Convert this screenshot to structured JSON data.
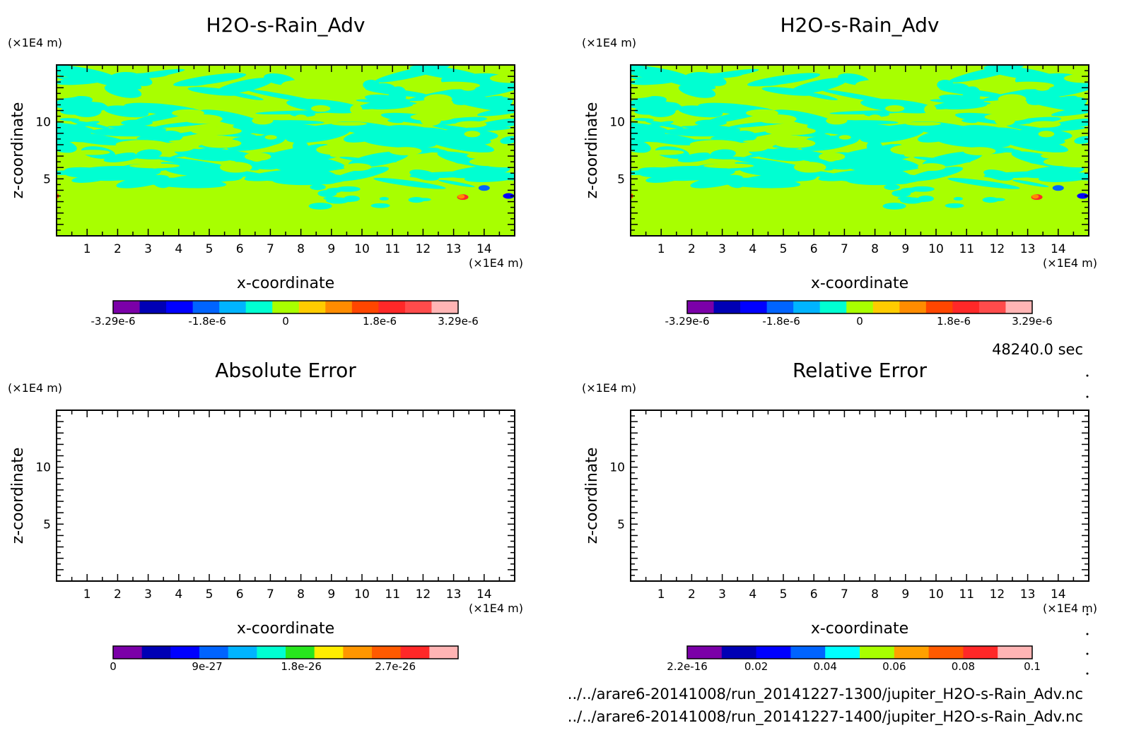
{
  "time_label": "48240.0 sec",
  "files": [
    "../../arare6-20141008/run_20141227-1300/jupiter_H2O-s-Rain_Adv.nc",
    "../../arare6-20141008/run_20141227-1400/jupiter_H2O-s-Rain_Adv.nc"
  ],
  "chart_data": [
    {
      "type": "heatmap",
      "title": "H2O-s-Rain_Adv",
      "xlabel": "x-coordinate",
      "ylabel": "z-coordinate",
      "x_unit": "(×1E4 m)",
      "y_unit": "(×1E4 m)",
      "xlim": [
        0,
        15
      ],
      "ylim": [
        0,
        15
      ],
      "xticks": [
        "1",
        "2",
        "3",
        "4",
        "5",
        "6",
        "7",
        "8",
        "9",
        "10",
        "11",
        "12",
        "13",
        "14"
      ],
      "yticks": [
        "5",
        "10"
      ],
      "colorbar": {
        "colors": [
          "#7b00a8",
          "#0000b4",
          "#0000ff",
          "#0064ff",
          "#00b4ff",
          "#00ffd2",
          "#a8ff00",
          "#ffcc00",
          "#ff8c00",
          "#ff4600",
          "#ff2828",
          "#ff4b4b",
          "#ffb4b4"
        ],
        "ticks": [
          "-3.29e-6",
          "-1.8e-6",
          "0",
          "1.8e-6",
          "3.29e-6"
        ],
        "tick_positions": [
          0.0,
          0.2727,
          0.5,
          0.7727,
          1.0
        ]
      },
      "field": {
        "background": "#a8ff00",
        "band_color": "#00ffd2",
        "z_range_bands": [
          4.5,
          14.5
        ],
        "hotspots": [
          {
            "x": 13.3,
            "z": 3.4,
            "color": "#ff2828"
          },
          {
            "x": 14.0,
            "z": 4.2,
            "color": "#0064ff"
          },
          {
            "x": 14.8,
            "z": 3.5,
            "color": "#0000ff"
          }
        ]
      }
    },
    {
      "type": "heatmap",
      "title": "H2O-s-Rain_Adv",
      "xlabel": "x-coordinate",
      "ylabel": "z-coordinate",
      "x_unit": "(×1E4 m)",
      "y_unit": "(×1E4 m)",
      "xlim": [
        0,
        15
      ],
      "ylim": [
        0,
        15
      ],
      "xticks": [
        "1",
        "2",
        "3",
        "4",
        "5",
        "6",
        "7",
        "8",
        "9",
        "10",
        "11",
        "12",
        "13",
        "14"
      ],
      "yticks": [
        "5",
        "10"
      ],
      "colorbar": {
        "colors": [
          "#7b00a8",
          "#0000b4",
          "#0000ff",
          "#0064ff",
          "#00b4ff",
          "#00ffd2",
          "#a8ff00",
          "#ffcc00",
          "#ff8c00",
          "#ff4600",
          "#ff2828",
          "#ff4b4b",
          "#ffb4b4"
        ],
        "ticks": [
          "-3.29e-6",
          "-1.8e-6",
          "0",
          "1.8e-6",
          "3.29e-6"
        ],
        "tick_positions": [
          0.0,
          0.2727,
          0.5,
          0.7727,
          1.0
        ]
      },
      "field": {
        "background": "#a8ff00",
        "band_color": "#00ffd2",
        "z_range_bands": [
          4.5,
          14.5
        ],
        "hotspots": [
          {
            "x": 13.3,
            "z": 3.4,
            "color": "#ff2828"
          },
          {
            "x": 14.0,
            "z": 4.2,
            "color": "#0064ff"
          },
          {
            "x": 14.8,
            "z": 3.5,
            "color": "#0000ff"
          }
        ]
      }
    },
    {
      "type": "heatmap",
      "title": "Absolute Error",
      "xlabel": "x-coordinate",
      "ylabel": "z-coordinate",
      "x_unit": "(×1E4 m)",
      "y_unit": "(×1E4 m)",
      "xlim": [
        0,
        15
      ],
      "ylim": [
        0,
        15
      ],
      "xticks": [
        "1",
        "2",
        "3",
        "4",
        "5",
        "6",
        "7",
        "8",
        "9",
        "10",
        "11",
        "12",
        "13",
        "14"
      ],
      "yticks": [
        "5",
        "10"
      ],
      "colorbar": {
        "colors": [
          "#7b00a8",
          "#0000b4",
          "#0000ff",
          "#0064ff",
          "#00b4ff",
          "#00ffd2",
          "#28e61e",
          "#ffee00",
          "#ff9600",
          "#ff5a00",
          "#ff2828",
          "#ffb4b4"
        ],
        "ticks": [
          "0",
          "9e-27",
          "1.8e-26",
          "2.7e-26"
        ],
        "tick_positions": [
          0.0,
          0.2727,
          0.5454,
          0.8181
        ]
      },
      "field": null
    },
    {
      "type": "heatmap",
      "title": "Relative Error",
      "xlabel": "x-coordinate",
      "ylabel": "z-coordinate",
      "x_unit": "(×1E4 m)",
      "y_unit": "(×1E4 m)",
      "xlim": [
        0,
        15
      ],
      "ylim": [
        0,
        15
      ],
      "xticks": [
        "1",
        "2",
        "3",
        "4",
        "5",
        "6",
        "7",
        "8",
        "9",
        "10",
        "11",
        "12",
        "13",
        "14"
      ],
      "yticks": [
        "5",
        "10"
      ],
      "colorbar": {
        "colors": [
          "#7b00a8",
          "#0000b4",
          "#0000ff",
          "#0064ff",
          "#00ffff",
          "#a8ff00",
          "#ffa000",
          "#ff5a00",
          "#ff2828",
          "#ffb4b4"
        ],
        "ticks": [
          "2.2e-16",
          "0.02",
          "0.04",
          "0.06",
          "0.08",
          "0.1"
        ],
        "tick_positions": [
          0.0,
          0.2,
          0.4,
          0.6,
          0.8,
          1.0
        ]
      },
      "field": null
    }
  ]
}
